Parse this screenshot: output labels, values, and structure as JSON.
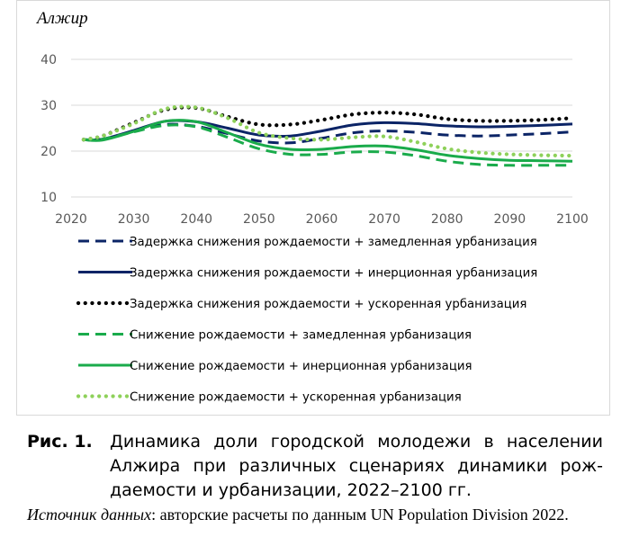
{
  "chart_data": {
    "type": "line",
    "title": "Алжир",
    "xlabel": "",
    "ylabel": "",
    "x_ticks": [
      "2020",
      "2030",
      "2040",
      "2050",
      "2060",
      "2070",
      "2080",
      "2090",
      "2100"
    ],
    "y_ticks": [
      "10",
      "20",
      "30",
      "40"
    ],
    "xlim": [
      2020,
      2100
    ],
    "ylim": [
      10,
      40
    ],
    "grid": "horizontal",
    "legend_position": "bottom",
    "series": [
      {
        "name": "Задержка снижения рождаемости + замедленная урбанизация",
        "color": "#0b2466",
        "style": "dashed",
        "x": [
          2022,
          2025,
          2030,
          2035,
          2040,
          2045,
          2050,
          2055,
          2060,
          2065,
          2070,
          2075,
          2080,
          2085,
          2090,
          2095,
          2100
        ],
        "y": [
          22.5,
          22.5,
          24.3,
          25.8,
          25.4,
          23.8,
          22.2,
          21.8,
          22.8,
          24.0,
          24.4,
          24.1,
          23.5,
          23.3,
          23.5,
          23.8,
          24.2
        ]
      },
      {
        "name": "Задержка снижения рождаемости + инерционная урбанизация",
        "color": "#0b2466",
        "style": "solid",
        "x": [
          2022,
          2025,
          2030,
          2035,
          2040,
          2045,
          2050,
          2055,
          2060,
          2065,
          2070,
          2075,
          2080,
          2085,
          2090,
          2095,
          2100
        ],
        "y": [
          22.5,
          22.6,
          24.5,
          26.5,
          26.4,
          25.0,
          23.5,
          23.3,
          24.4,
          25.7,
          26.2,
          26.0,
          25.5,
          25.3,
          25.4,
          25.6,
          25.9
        ]
      },
      {
        "name": "Задержка снижения рождаемости + ускоренная урбанизация",
        "color": "#000000",
        "style": "dotted",
        "x": [
          2022,
          2025,
          2030,
          2035,
          2040,
          2045,
          2050,
          2055,
          2060,
          2065,
          2070,
          2075,
          2080,
          2085,
          2090,
          2095,
          2100
        ],
        "y": [
          22.5,
          23.3,
          26.2,
          29.0,
          29.4,
          27.5,
          25.8,
          25.8,
          26.8,
          28.0,
          28.4,
          28.0,
          27.0,
          26.6,
          26.6,
          26.8,
          27.2
        ]
      },
      {
        "name": "Снижение рождаемости + замедленная урбанизация",
        "color": "#1aab4b",
        "style": "dashed",
        "x": [
          2022,
          2025,
          2030,
          2035,
          2040,
          2045,
          2050,
          2055,
          2060,
          2065,
          2070,
          2075,
          2080,
          2085,
          2090,
          2095,
          2100
        ],
        "y": [
          22.5,
          22.6,
          24.2,
          25.6,
          25.3,
          23.0,
          20.5,
          19.3,
          19.3,
          19.8,
          19.8,
          19.0,
          17.8,
          17.1,
          16.9,
          16.9,
          16.9
        ]
      },
      {
        "name": "Снижение рождаемости + инерционная урбанизация",
        "color": "#1aab4b",
        "style": "solid",
        "x": [
          2022,
          2025,
          2030,
          2035,
          2040,
          2045,
          2050,
          2055,
          2060,
          2065,
          2070,
          2075,
          2080,
          2085,
          2090,
          2095,
          2100
        ],
        "y": [
          22.5,
          22.4,
          24.3,
          26.5,
          26.4,
          24.0,
          21.5,
          20.4,
          20.4,
          21.0,
          21.1,
          20.3,
          19.1,
          18.4,
          18.0,
          17.9,
          17.8
        ]
      },
      {
        "name": "Снижение рождаемости + ускоренная урбанизация",
        "color": "#8ed15a",
        "style": "dotted",
        "x": [
          2022,
          2025,
          2030,
          2035,
          2040,
          2045,
          2050,
          2055,
          2060,
          2065,
          2070,
          2075,
          2080,
          2085,
          2090,
          2095,
          2100
        ],
        "y": [
          22.5,
          23.3,
          26.0,
          29.2,
          29.5,
          27.2,
          24.0,
          22.8,
          22.5,
          23.0,
          23.2,
          22.0,
          20.5,
          19.7,
          19.3,
          19.1,
          19.0
        ]
      }
    ]
  },
  "caption": {
    "label": "Рис. 1.",
    "text": "Динамика доли городской молодежи в населении Алжира при различных сценариях динамики рож-даемости и урбанизации, 2022–2100 гг."
  },
  "source": {
    "prefix": "Источник данных",
    "text": ": авторские расчеты по данным UN Population Division 2022."
  }
}
